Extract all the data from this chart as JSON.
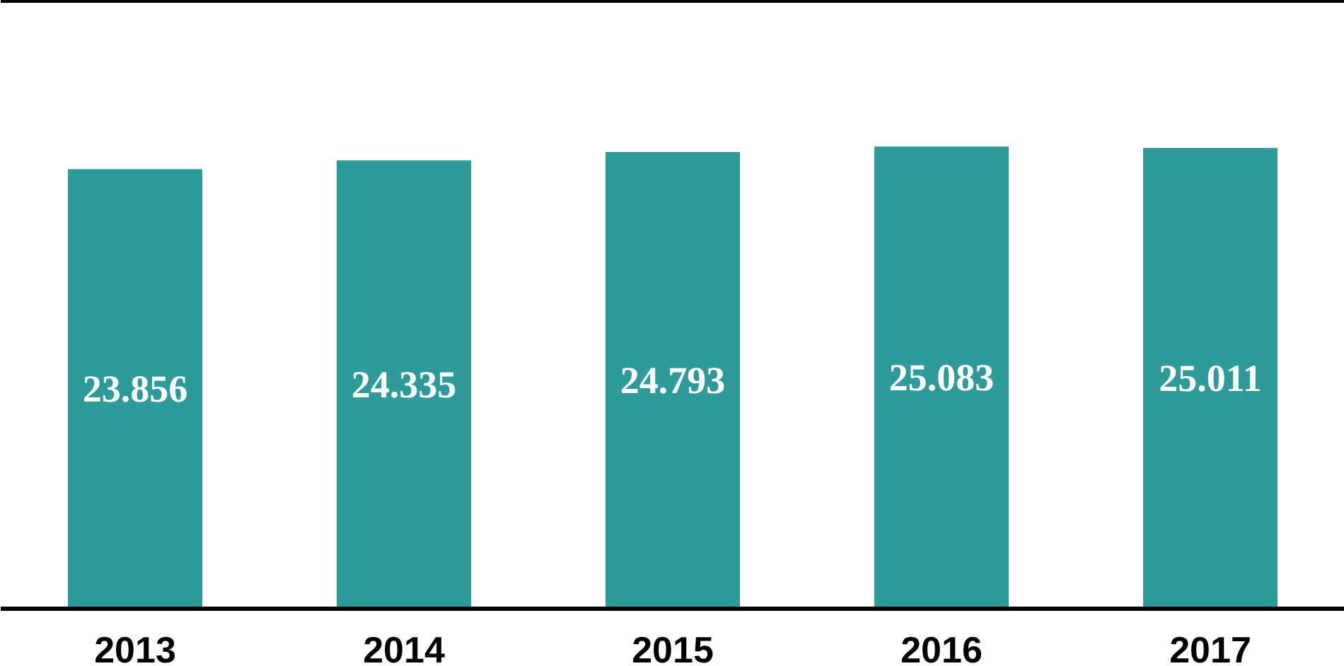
{
  "chart_data": {
    "type": "bar",
    "categories": [
      "2013",
      "2014",
      "2015",
      "2016",
      "2017"
    ],
    "values": [
      23.856,
      24.335,
      24.793,
      25.083,
      25.011
    ],
    "color": "#2e9a9a",
    "ylim": [
      0,
      33
    ],
    "tick_labels": "x",
    "grid": false,
    "data_labels": true
  }
}
